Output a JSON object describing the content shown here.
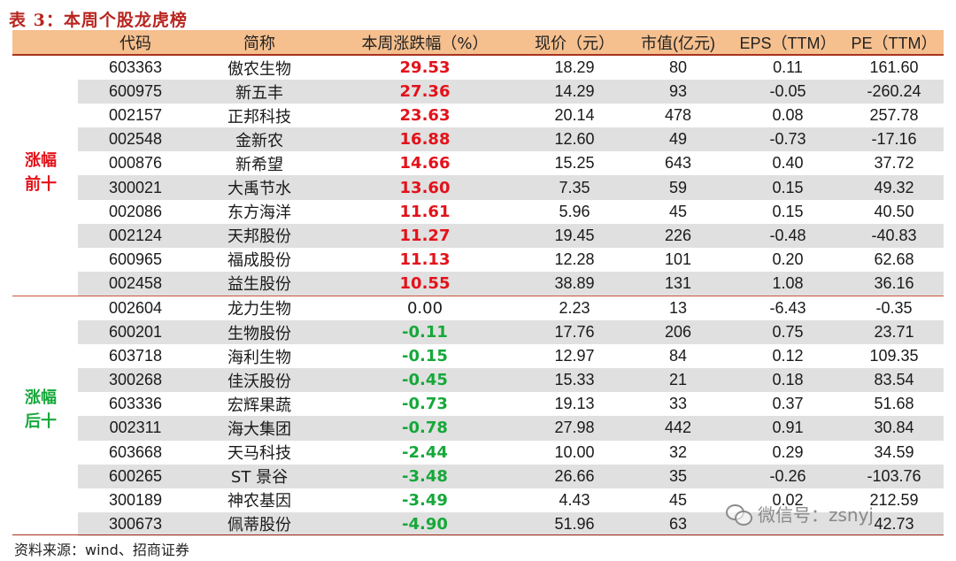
{
  "title": "表 3：本周个股龙虎榜",
  "headers": {
    "code": "代码",
    "name": "简称",
    "change": "本周涨跌幅（%）",
    "price": "现价（元）",
    "mcap": "市值(亿元)",
    "eps": "EPS（TTM）",
    "pe": "PE（TTM）"
  },
  "groups": {
    "top": "涨幅前十",
    "bottom": "涨幅后十"
  },
  "colors": {
    "up": "#e3121a",
    "down": "#16a83a",
    "header_bg": "#f5bf8e",
    "rule": "#a9331f"
  },
  "rows": [
    {
      "code": "603363",
      "name": "傲农生物",
      "change": "29.53",
      "price": "18.29",
      "mcap": "80",
      "eps": "0.11",
      "pe": "161.60",
      "dir": "up"
    },
    {
      "code": "600975",
      "name": "新五丰",
      "change": "27.36",
      "price": "14.29",
      "mcap": "93",
      "eps": "-0.05",
      "pe": "-260.24",
      "dir": "up"
    },
    {
      "code": "002157",
      "name": "正邦科技",
      "change": "23.63",
      "price": "20.14",
      "mcap": "478",
      "eps": "0.08",
      "pe": "257.78",
      "dir": "up"
    },
    {
      "code": "002548",
      "name": "金新农",
      "change": "16.88",
      "price": "12.60",
      "mcap": "49",
      "eps": "-0.73",
      "pe": "-17.16",
      "dir": "up"
    },
    {
      "code": "000876",
      "name": "新希望",
      "change": "14.66",
      "price": "15.25",
      "mcap": "643",
      "eps": "0.40",
      "pe": "37.72",
      "dir": "up"
    },
    {
      "code": "300021",
      "name": "大禹节水",
      "change": "13.60",
      "price": "7.35",
      "mcap": "59",
      "eps": "0.15",
      "pe": "49.32",
      "dir": "up"
    },
    {
      "code": "002086",
      "name": "东方海洋",
      "change": "11.61",
      "price": "5.96",
      "mcap": "45",
      "eps": "0.15",
      "pe": "40.50",
      "dir": "up"
    },
    {
      "code": "002124",
      "name": "天邦股份",
      "change": "11.27",
      "price": "19.45",
      "mcap": "226",
      "eps": "-0.48",
      "pe": "-40.83",
      "dir": "up"
    },
    {
      "code": "600965",
      "name": "福成股份",
      "change": "11.13",
      "price": "12.28",
      "mcap": "101",
      "eps": "0.20",
      "pe": "62.68",
      "dir": "up"
    },
    {
      "code": "002458",
      "name": "益生股份",
      "change": "10.55",
      "price": "38.89",
      "mcap": "131",
      "eps": "1.08",
      "pe": "36.16",
      "dir": "up"
    },
    {
      "code": "002604",
      "name": "龙力生物",
      "change": "0.00",
      "price": "2.23",
      "mcap": "13",
      "eps": "-6.43",
      "pe": "-0.35",
      "dir": "flat"
    },
    {
      "code": "600201",
      "name": "生物股份",
      "change": "-0.11",
      "price": "17.76",
      "mcap": "206",
      "eps": "0.75",
      "pe": "23.71",
      "dir": "down"
    },
    {
      "code": "603718",
      "name": "海利生物",
      "change": "-0.15",
      "price": "12.97",
      "mcap": "84",
      "eps": "0.12",
      "pe": "109.35",
      "dir": "down"
    },
    {
      "code": "300268",
      "name": "佳沃股份",
      "change": "-0.45",
      "price": "15.33",
      "mcap": "21",
      "eps": "0.18",
      "pe": "83.54",
      "dir": "down"
    },
    {
      "code": "603336",
      "name": "宏辉果蔬",
      "change": "-0.73",
      "price": "19.13",
      "mcap": "33",
      "eps": "0.37",
      "pe": "51.68",
      "dir": "down"
    },
    {
      "code": "002311",
      "name": "海大集团",
      "change": "-0.78",
      "price": "27.98",
      "mcap": "442",
      "eps": "0.91",
      "pe": "30.84",
      "dir": "down"
    },
    {
      "code": "603668",
      "name": "天马科技",
      "change": "-2.44",
      "price": "10.00",
      "mcap": "32",
      "eps": "0.29",
      "pe": "34.59",
      "dir": "down"
    },
    {
      "code": "600265",
      "name": "ST 景谷",
      "change": "-3.48",
      "price": "26.66",
      "mcap": "35",
      "eps": "-0.26",
      "pe": "-103.76",
      "dir": "down"
    },
    {
      "code": "300189",
      "name": "神农基因",
      "change": "-3.49",
      "price": "4.43",
      "mcap": "45",
      "eps": "0.02",
      "pe": "212.59",
      "dir": "down"
    },
    {
      "code": "300673",
      "name": "佩蒂股份",
      "change": "-4.90",
      "price": "51.96",
      "mcap": "63",
      "eps": "",
      "pe": "42.73",
      "dir": "down"
    }
  ],
  "source": "资料来源：wind、招商证券",
  "watermark": "微信号：zsnyj"
}
